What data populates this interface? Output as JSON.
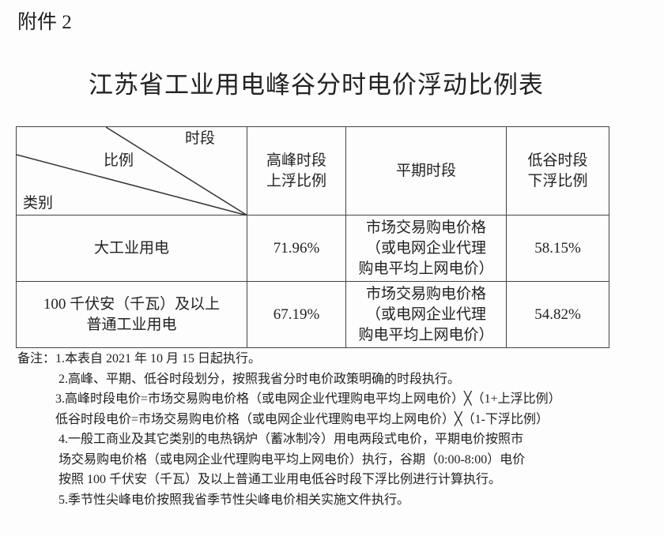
{
  "attachment_label": "附件 2",
  "title": "江苏省工业用电峰谷分时电价浮动比例表",
  "table": {
    "corner": {
      "top": "时段",
      "middle": "比例",
      "bottom": "类别"
    },
    "headers": [
      "高峰时段\n上浮比例",
      "平期时段",
      "低谷时段\n下浮比例"
    ],
    "rows": [
      {
        "category": "大工业用电",
        "peak": "71.96%",
        "flat": "市场交易购电价格\n（或电网企业代理\n购电平均上网电价）",
        "valley": "58.15%"
      },
      {
        "category": "100 千伏安（千瓦）及以上\n普通工业用电",
        "peak": "67.19%",
        "flat": "市场交易购电价格\n（或电网企业代理\n购电平均上网电价）",
        "valley": "54.82%"
      }
    ]
  },
  "notes": [
    "备注：1.本表自 2021 年 10 月 15 日起执行。",
    "2.高峰、平期、低谷时段划分，按照我省分时电价政策明确的时段执行。",
    "3.高峰时段电价=市场交易购电价格（或电网企业代理购电平均上网电价）╳（1+上浮比例）",
    "低谷时段电价=市场交易购电价格（或电网企业代理购电平均上网电价）╳（1-下浮比例）",
    "4.一般工商业及其它类别的电热锅炉（蓄冰制冷）用电两段式电价，平期电价按照市",
    "场交易购电价格（或电网企业代理购电平均上网电价）执行，谷期（0:00-8:00）电价",
    "按照 100 千伏安（千瓦）及以上普通工业用电低谷时段下浮比例进行计算执行。",
    "5.季节性尖峰电价按照我省季节性尖峰电价相关实施文件执行。"
  ]
}
